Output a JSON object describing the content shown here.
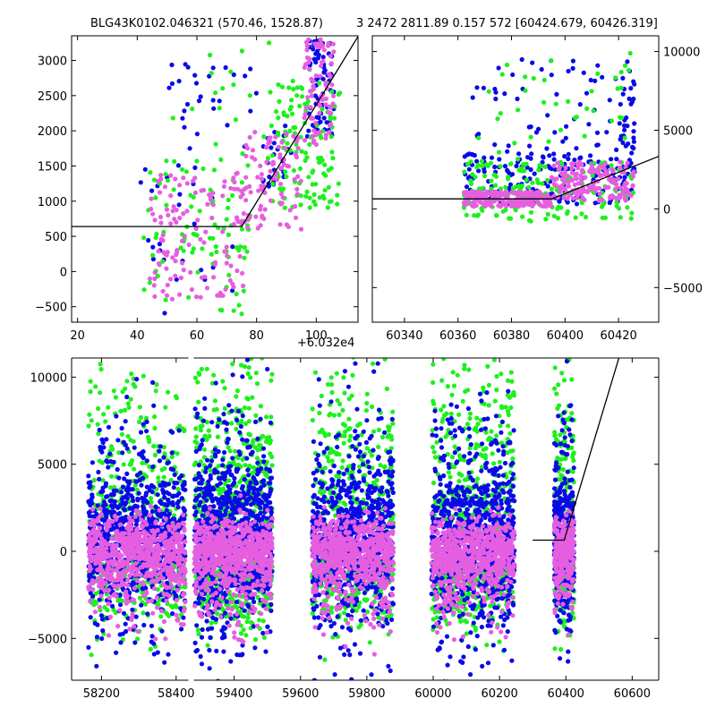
{
  "figure": {
    "title_left": "BLG43K0102.046321 (570.46, 1528.87)",
    "title_right": "3 2472 2811.89 0.157 572 [60424.679, 60426.319]",
    "offset_label": "+6.032e4"
  },
  "colors": {
    "series_blue": "#0a0ae8",
    "series_green": "#1ef01e",
    "series_pink": "#e65ee0",
    "model_line": "#000000",
    "axes": "#000000",
    "background": "#ffffff"
  },
  "chart_data": [
    {
      "id": "top-left",
      "type": "scatter",
      "xlim": [
        18,
        114
      ],
      "ylim": [
        -720,
        3350
      ],
      "x_offset": 60320,
      "xticks": [
        20,
        40,
        60,
        80,
        100
      ],
      "yticks": [
        -500,
        0,
        500,
        1000,
        1500,
        2000,
        2500,
        3000
      ],
      "ytick_side": "left",
      "series": [
        {
          "color": "#0a0ae8",
          "clusters": [
            {
              "x": [
                97,
                106
              ],
              "y": [
                1800,
                3300
              ],
              "n": 70
            },
            {
              "x": [
                50,
                80
              ],
              "y": [
                1500,
                3100
              ],
              "n": 30
            },
            {
              "x": [
                82,
                92
              ],
              "y": [
                1200,
                2100
              ],
              "n": 25
            },
            {
              "x": [
                40,
                75
              ],
              "y": [
                -600,
                1500
              ],
              "n": 25
            }
          ]
        },
        {
          "color": "#1ef01e",
          "clusters": [
            {
              "x": [
                85,
                108
              ],
              "y": [
                900,
                2700
              ],
              "n": 120
            },
            {
              "x": [
                42,
                78
              ],
              "y": [
                -650,
                1600
              ],
              "n": 90
            },
            {
              "x": [
                50,
                100
              ],
              "y": [
                1600,
                3300
              ],
              "n": 25
            }
          ]
        },
        {
          "color": "#e65ee0",
          "clusters": [
            {
              "x": [
                44,
                76
              ],
              "y": [
                -400,
                1400
              ],
              "n": 130
            },
            {
              "x": [
                76,
                95
              ],
              "y": [
                600,
                2000
              ],
              "n": 90
            },
            {
              "x": [
                96,
                106
              ],
              "y": [
                1800,
                3300
              ],
              "n": 80
            }
          ]
        }
      ],
      "model": {
        "x": [
          18,
          75,
          114
        ],
        "y": [
          640,
          640,
          3340
        ]
      }
    },
    {
      "id": "top-right",
      "type": "scatter",
      "xlim": [
        60328,
        60435
      ],
      "ylim": [
        -7200,
        11000
      ],
      "xticks": [
        60340,
        60360,
        60380,
        60400,
        60420
      ],
      "yticks": [
        -5000,
        0,
        5000,
        10000
      ],
      "ytick_side": "right",
      "series": [
        {
          "color": "#0a0ae8",
          "clusters": [
            {
              "x": [
                60362,
                60426
              ],
              "y": [
                300,
                3500
              ],
              "n": 180
            },
            {
              "x": [
                60365,
                60420
              ],
              "y": [
                3000,
                9500
              ],
              "n": 60
            },
            {
              "x": [
                60420,
                60426
              ],
              "y": [
                2000,
                9500
              ],
              "n": 40
            }
          ]
        },
        {
          "color": "#1ef01e",
          "clusters": [
            {
              "x": [
                60362,
                60426
              ],
              "y": [
                -800,
                3000
              ],
              "n": 170
            },
            {
              "x": [
                60362,
                60426
              ],
              "y": [
                3000,
                10000
              ],
              "n": 40
            }
          ]
        },
        {
          "color": "#e65ee0",
          "clusters": [
            {
              "x": [
                60362,
                60395
              ],
              "y": [
                150,
                1100
              ],
              "n": 200
            },
            {
              "x": [
                60395,
                60426
              ],
              "y": [
                500,
                3000
              ],
              "n": 150
            }
          ]
        }
      ],
      "model": {
        "x": [
          60328,
          60395,
          60435
        ],
        "y": [
          640,
          640,
          3340
        ]
      }
    },
    {
      "id": "bottom",
      "type": "scatter",
      "xlim": [
        58120,
        60680
      ],
      "ylim": [
        -7400,
        11100
      ],
      "xticks": [
        58200,
        58400,
        59400,
        59600,
        59800,
        60000,
        60200,
        60400,
        60600
      ],
      "tick_labels_shown": [
        "58200",
        "58400",
        "59400",
        "59600",
        "59800",
        "60000",
        "60200",
        "60400",
        "60600"
      ],
      "yticks": [
        -5000,
        0,
        5000,
        10000
      ],
      "ytick_side": "left",
      "axis_break": {
        "data_from": 58440,
        "data_to": 59270
      },
      "seasons": [
        {
          "x": [
            58165,
            58425
          ],
          "n_core": 600,
          "n_outer": 220
        },
        {
          "x": [
            59280,
            59515
          ],
          "n_core": 600,
          "n_outer": 340
        },
        {
          "x": [
            59635,
            59880
          ],
          "n_core": 600,
          "n_outer": 240
        },
        {
          "x": [
            59995,
            60245
          ],
          "n_core": 600,
          "n_outer": 280
        },
        {
          "x": [
            60365,
            60425
          ],
          "n_core": 220,
          "n_outer": 110
        }
      ],
      "model": {
        "x": [
          60300,
          60395,
          60560
        ],
        "y": [
          640,
          640,
          11100
        ]
      }
    }
  ]
}
